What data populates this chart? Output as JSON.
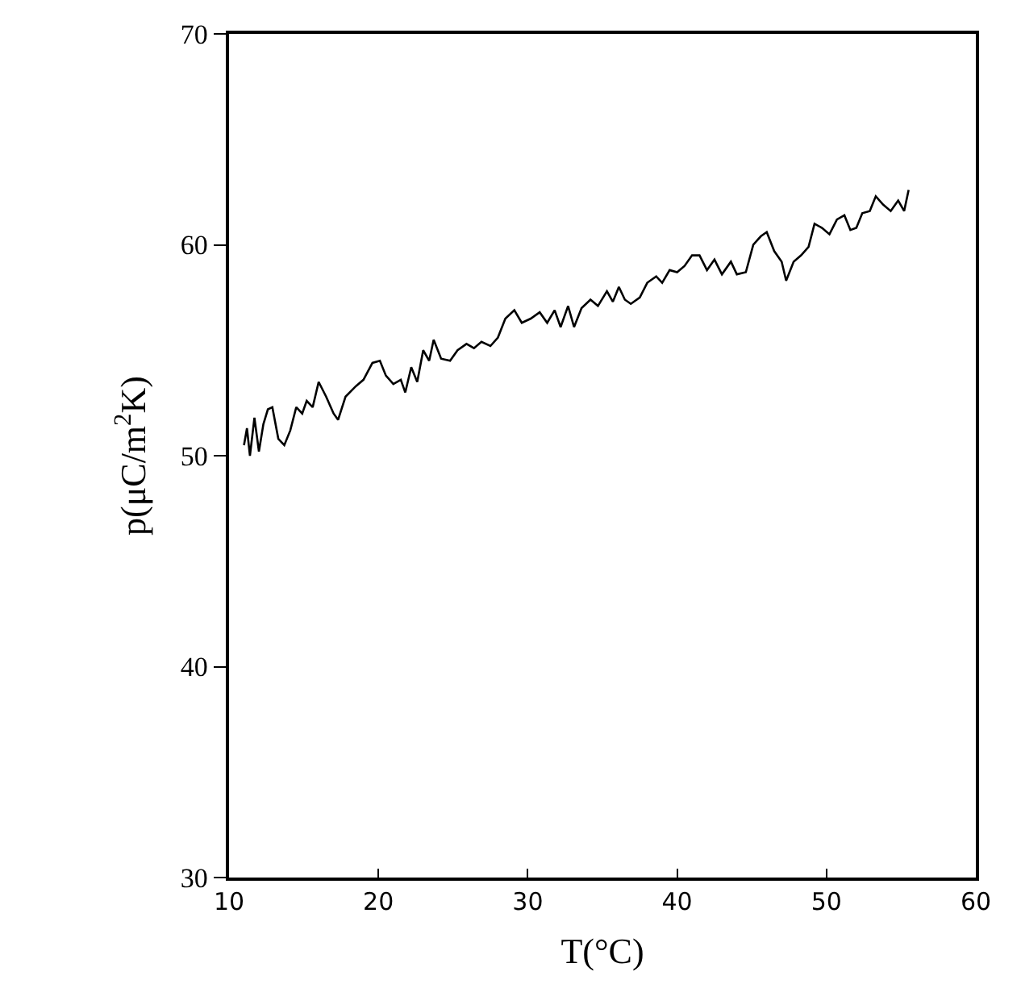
{
  "chart_data": {
    "type": "line",
    "xlabel": "T(°C)",
    "ylabel": "p(μC/m$^{2}$K)",
    "x": [
      11.0,
      11.2,
      11.4,
      11.7,
      12.0,
      12.3,
      12.6,
      12.9,
      13.3,
      13.7,
      14.1,
      14.5,
      14.9,
      15.2,
      15.6,
      16.0,
      16.5,
      17.0,
      17.3,
      17.8,
      18.5,
      19.0,
      19.6,
      20.1,
      20.5,
      21.0,
      21.5,
      21.8,
      22.2,
      22.6,
      23.0,
      23.4,
      23.7,
      24.2,
      24.8,
      25.3,
      25.9,
      26.4,
      26.9,
      27.5,
      28.0,
      28.5,
      29.1,
      29.6,
      30.2,
      30.8,
      31.3,
      31.8,
      32.2,
      32.7,
      33.1,
      33.6,
      34.2,
      34.7,
      35.3,
      35.7,
      36.1,
      36.5,
      36.9,
      37.5,
      38.0,
      38.6,
      39.0,
      39.5,
      40.0,
      40.5,
      41.0,
      41.5,
      42.0,
      42.5,
      43.0,
      43.6,
      44.0,
      44.6,
      45.1,
      45.6,
      46.0,
      46.5,
      47.0,
      47.3,
      47.8,
      48.3,
      48.8,
      49.2,
      49.7,
      50.2,
      50.7,
      51.2,
      51.6,
      52.0,
      52.4,
      52.9,
      53.3,
      53.8,
      54.3,
      54.8,
      55.2,
      55.5
    ],
    "series": [
      {
        "color": "#000000",
        "values": [
          50.5,
          51.3,
          50.0,
          51.8,
          50.2,
          51.5,
          52.2,
          52.3,
          50.8,
          50.5,
          51.2,
          52.3,
          52.0,
          52.6,
          52.3,
          53.5,
          52.8,
          52.0,
          51.7,
          52.8,
          53.3,
          53.6,
          54.4,
          54.5,
          53.8,
          53.4,
          53.6,
          53.0,
          54.2,
          53.5,
          55.0,
          54.5,
          55.5,
          54.6,
          54.5,
          55.0,
          55.3,
          55.1,
          55.4,
          55.2,
          55.6,
          56.5,
          56.9,
          56.3,
          56.5,
          56.8,
          56.3,
          56.9,
          56.1,
          57.1,
          56.1,
          57.0,
          57.4,
          57.1,
          57.8,
          57.3,
          58.0,
          57.4,
          57.2,
          57.5,
          58.2,
          58.5,
          58.2,
          58.8,
          58.7,
          59.0,
          59.5,
          59.5,
          58.8,
          59.3,
          58.6,
          59.2,
          58.6,
          58.7,
          60.0,
          60.4,
          60.6,
          59.7,
          59.2,
          58.3,
          59.2,
          59.5,
          59.9,
          61.0,
          60.8,
          60.5,
          61.2,
          61.4,
          60.7,
          60.8,
          61.5,
          61.6,
          62.3,
          61.9,
          61.6,
          62.1,
          61.6,
          62.6
        ]
      }
    ],
    "xlim": [
      10,
      60
    ],
    "xticks": [
      10,
      20,
      30,
      40,
      50,
      60
    ],
    "ylim": [
      30,
      70
    ],
    "yticks": [
      30,
      40,
      50,
      60,
      70
    ],
    "grid": false,
    "marker": "none",
    "line_style": "solid"
  }
}
